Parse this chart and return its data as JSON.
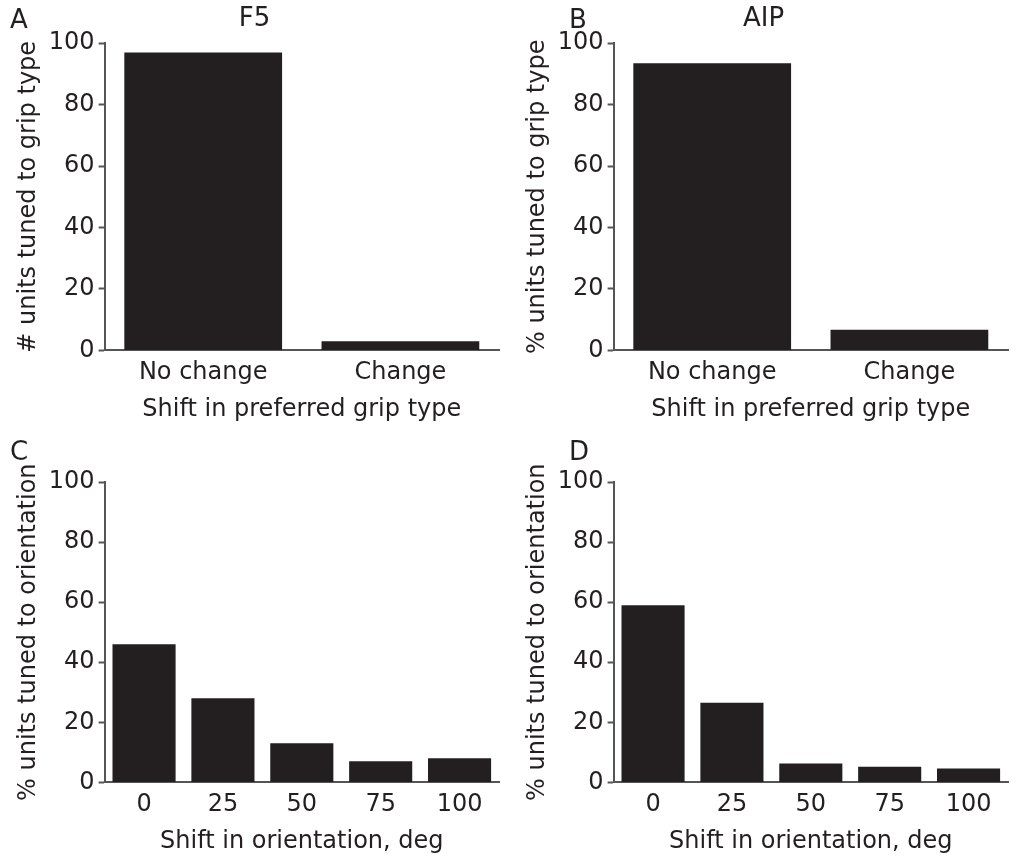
{
  "chart_data": [
    {
      "type": "bar",
      "title": "F5",
      "annotations": [
        "A"
      ],
      "categories": [
        "No change",
        "Change"
      ],
      "values": [
        97,
        3
      ],
      "color": "#231f20",
      "xlabel": "Shift in preferred grip type",
      "ylabel": "# units tuned to grip type",
      "ylim": [
        0,
        100
      ],
      "yticks": [
        0,
        20,
        40,
        60,
        80,
        100
      ],
      "grid": false,
      "legend": false
    },
    {
      "type": "bar",
      "title": "AIP",
      "annotations": [
        "B"
      ],
      "categories": [
        "No change",
        "Change"
      ],
      "values": [
        93.5,
        6.7
      ],
      "color": "#231f20",
      "xlabel": "Shift in preferred grip type",
      "ylabel": "% units tuned to grip type",
      "ylim": [
        0,
        100
      ],
      "yticks": [
        0,
        20,
        40,
        60,
        80,
        100
      ],
      "grid": false,
      "legend": false
    },
    {
      "type": "bar",
      "annotations": [
        "C"
      ],
      "categories": [
        "0",
        "25",
        "50",
        "75",
        "100"
      ],
      "values": [
        46,
        28,
        13,
        7,
        8
      ],
      "color": "#231f20",
      "xlabel": "Shift in orientation, deg",
      "ylabel": "% units tuned to orientation",
      "ylim": [
        0,
        100
      ],
      "yticks": [
        0,
        20,
        40,
        60,
        80,
        100
      ],
      "grid": false,
      "legend": false
    },
    {
      "type": "bar",
      "annotations": [
        "D"
      ],
      "categories": [
        "0",
        "25",
        "50",
        "75",
        "100"
      ],
      "values": [
        59,
        26.5,
        6.3,
        5.2,
        4.6
      ],
      "color": "#231f20",
      "xlabel": "Shift in orientation, deg",
      "ylabel": "% units tuned to orientation",
      "ylim": [
        0,
        100
      ],
      "yticks": [
        0,
        20,
        40,
        60,
        80,
        100
      ],
      "grid": false,
      "legend": false
    }
  ]
}
